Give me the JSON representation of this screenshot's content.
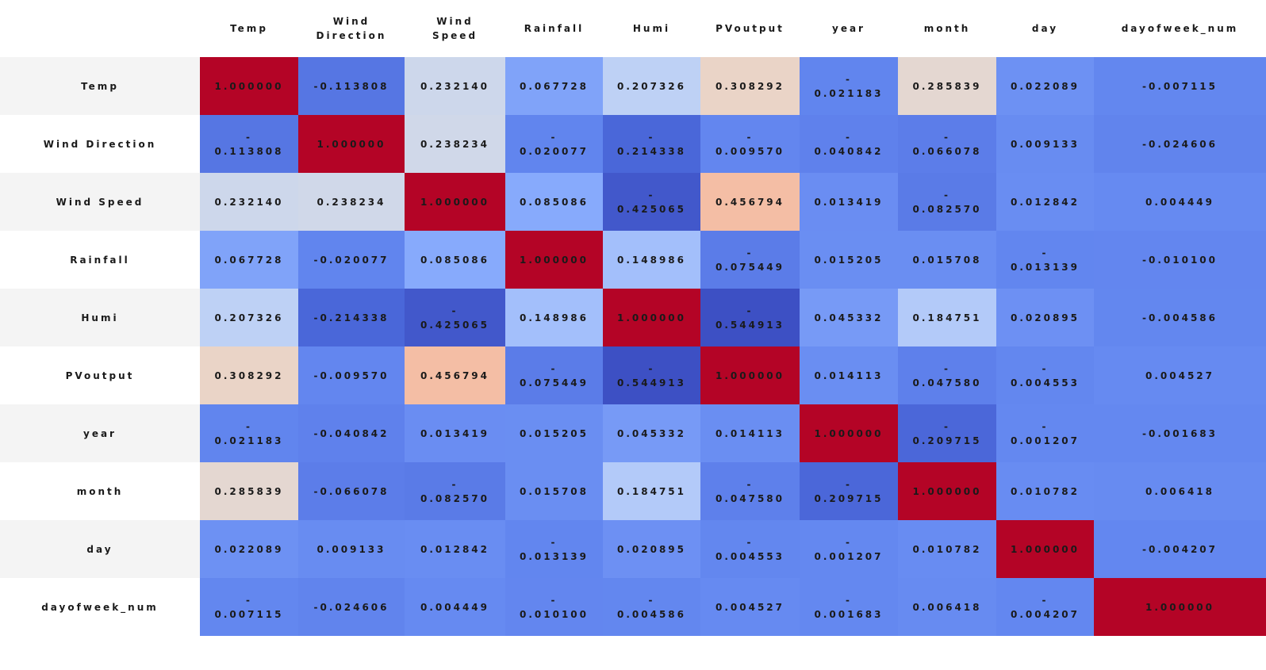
{
  "chart_data": {
    "type": "heatmap",
    "columns": [
      "Temp",
      "Wind Direction",
      "Wind Speed",
      "Rainfall",
      "Humi",
      "PVoutput",
      "year",
      "month",
      "day",
      "dayofweek_num"
    ],
    "column_labels": [
      [
        "Temp"
      ],
      [
        "Wind",
        "Direction"
      ],
      [
        "Wind",
        "Speed"
      ],
      [
        "Rainfall"
      ],
      [
        "Humi"
      ],
      [
        "PVoutput"
      ],
      [
        "year"
      ],
      [
        "month"
      ],
      [
        "day"
      ],
      [
        "dayofweek_num"
      ]
    ],
    "rows": [
      "Temp",
      "Wind Direction",
      "Wind Speed",
      "Rainfall",
      "Humi",
      "PVoutput",
      "year",
      "month",
      "day",
      "dayofweek_num"
    ],
    "values": [
      [
        1.0,
        -0.113808,
        0.23214,
        0.067728,
        0.207326,
        0.308292,
        -0.021183,
        0.285839,
        0.022089,
        -0.007115
      ],
      [
        -0.113808,
        1.0,
        0.238234,
        -0.020077,
        -0.214338,
        -0.00957,
        -0.040842,
        -0.066078,
        0.009133,
        -0.024606
      ],
      [
        0.23214,
        0.238234,
        1.0,
        0.085086,
        -0.425065,
        0.456794,
        0.013419,
        -0.08257,
        0.012842,
        0.004449
      ],
      [
        0.067728,
        -0.020077,
        0.085086,
        1.0,
        0.148986,
        -0.075449,
        0.015205,
        0.015708,
        -0.013139,
        -0.0101
      ],
      [
        0.207326,
        -0.214338,
        -0.425065,
        0.148986,
        1.0,
        -0.544913,
        0.045332,
        0.184751,
        0.020895,
        -0.004586
      ],
      [
        0.308292,
        -0.00957,
        0.456794,
        -0.075449,
        -0.544913,
        1.0,
        0.014113,
        -0.04758,
        -0.004553,
        0.004527
      ],
      [
        -0.021183,
        -0.040842,
        0.013419,
        0.015205,
        0.045332,
        0.014113,
        1.0,
        -0.209715,
        -0.001207,
        -0.001683
      ],
      [
        0.285839,
        -0.066078,
        -0.08257,
        0.015708,
        0.184751,
        -0.04758,
        -0.209715,
        1.0,
        0.010782,
        0.006418
      ],
      [
        0.022089,
        0.009133,
        0.012842,
        -0.013139,
        0.020895,
        -0.004553,
        -0.001207,
        0.010782,
        1.0,
        -0.004207
      ],
      [
        -0.007115,
        -0.024606,
        0.004449,
        -0.0101,
        -0.004586,
        0.004527,
        -0.001683,
        0.006418,
        -0.004207,
        1.0
      ]
    ],
    "colormap": "coolwarm",
    "colors": {
      "blue_deep": "#3b4cc0",
      "blue_mid": "#7b9ff9",
      "neutral": "#dddcdc",
      "red_mid": "#f7b89c",
      "red_deep": "#b40426"
    }
  }
}
